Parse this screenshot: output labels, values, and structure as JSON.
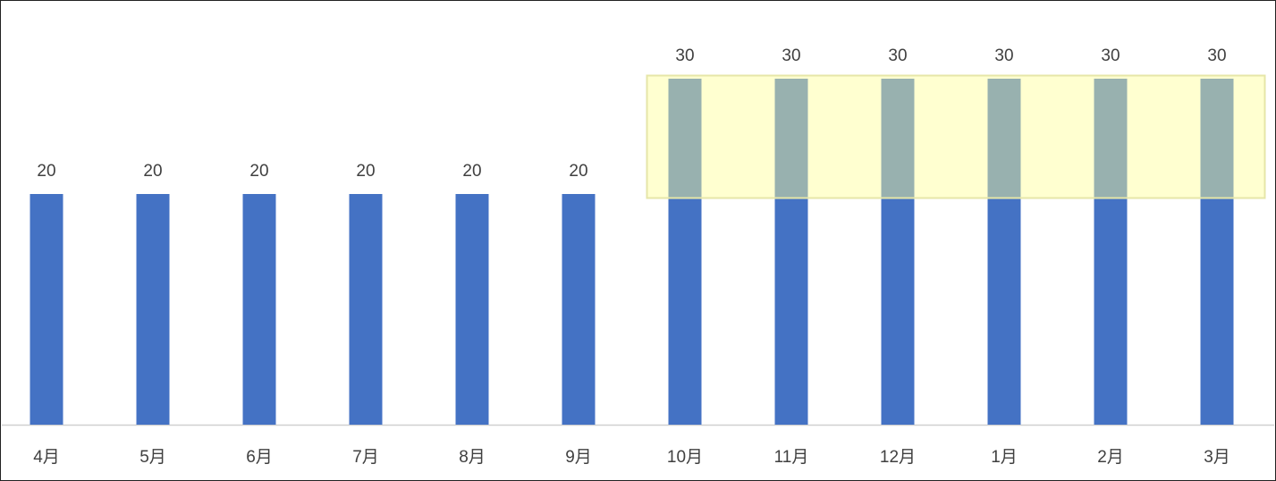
{
  "chart_data": {
    "type": "bar",
    "categories": [
      "4月",
      "5月",
      "6月",
      "7月",
      "8月",
      "9月",
      "10月",
      "11月",
      "12月",
      "1月",
      "2月",
      "3月"
    ],
    "values": [
      20,
      20,
      20,
      20,
      20,
      20,
      30,
      30,
      30,
      30,
      30,
      30
    ],
    "color": "#4472c4"
  }
}
